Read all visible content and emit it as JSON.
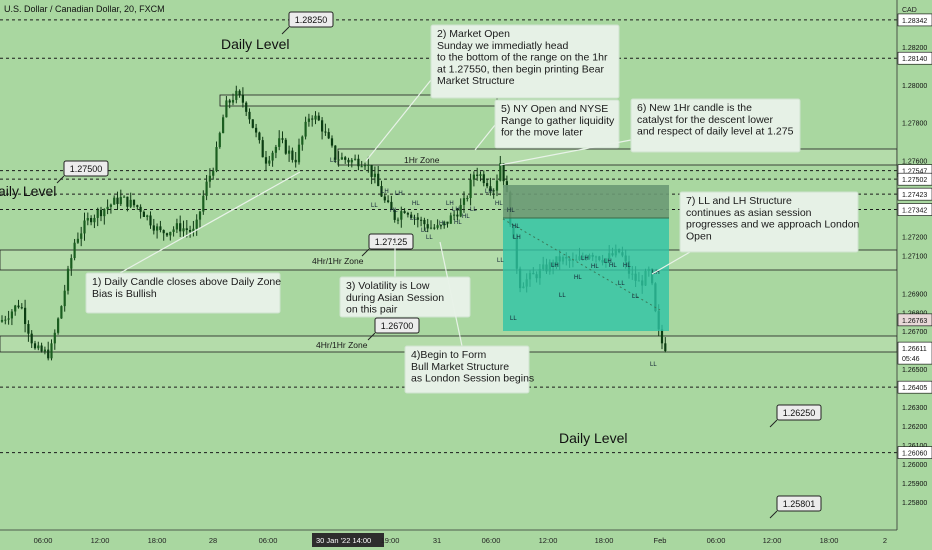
{
  "header": {
    "symbol": "U.S. Dollar / Canadian Dollar, 20, FXCM",
    "currency": "CAD"
  },
  "price_axis": {
    "ticks": [
      {
        "v": 1.28342,
        "label": "1.28342",
        "tag": true
      },
      {
        "v": 1.282,
        "label": "1.28200"
      },
      {
        "v": 1.2814,
        "label": "1.28140",
        "tag": true
      },
      {
        "v": 1.28,
        "label": "1.28000"
      },
      {
        "v": 1.278,
        "label": "1.27800"
      },
      {
        "v": 1.276,
        "label": "1.27600"
      },
      {
        "v": 1.27547,
        "label": "1.27547",
        "tag": true
      },
      {
        "v": 1.27502,
        "label": "1.27502",
        "tag": true
      },
      {
        "v": 1.27423,
        "label": "1.27423",
        "tag": true
      },
      {
        "v": 1.27342,
        "label": "1.27342",
        "tag": true
      },
      {
        "v": 1.272,
        "label": "1.27200"
      },
      {
        "v": 1.271,
        "label": "1.27100"
      },
      {
        "v": 1.269,
        "label": "1.26900"
      },
      {
        "v": 1.268,
        "label": "1.26800"
      },
      {
        "v": 1.2676,
        "label": "1.26763",
        "tag": true,
        "soft": true
      },
      {
        "v": 1.267,
        "label": "1.26700"
      },
      {
        "v": 1.26611,
        "label": "1.26611",
        "tag": true,
        "sub": "05:46"
      },
      {
        "v": 1.265,
        "label": "1.26500"
      },
      {
        "v": 1.26405,
        "label": "1.26405",
        "tag": true
      },
      {
        "v": 1.263,
        "label": "1.26300"
      },
      {
        "v": 1.262,
        "label": "1.26200"
      },
      {
        "v": 1.261,
        "label": "1.26100"
      },
      {
        "v": 1.2606,
        "label": "1.26060",
        "tag": true
      },
      {
        "v": 1.26,
        "label": "1.26000"
      },
      {
        "v": 1.259,
        "label": "1.25900"
      },
      {
        "v": 1.258,
        "label": "1.25800"
      }
    ]
  },
  "time_axis": {
    "labels": [
      "06:00",
      "12:00",
      "18:00",
      "28",
      "06:00",
      "30 Jan '22  14:00",
      "19:00",
      "31",
      "06:00",
      "12:00",
      "18:00",
      "Feb",
      "06:00",
      "12:00",
      "18:00",
      "2"
    ],
    "highlight_index": 5
  },
  "levels": [
    1.28342,
    1.2814,
    1.27547,
    1.27502,
    1.27423,
    1.27342,
    1.26405,
    1.2606
  ],
  "zones": [
    {
      "name": "4Hr/1Hr Zone",
      "label": "4Hr/1Hr Zone"
    },
    {
      "name": "4Hr/1Hr Zone",
      "label": "4Hr/1Hr Zone"
    },
    {
      "name": "1Hr Zone",
      "label": "1Hr Zone"
    }
  ],
  "price_tags": [
    "1.28250",
    "1.27500",
    "1.27125",
    "1.26700",
    "1.26250",
    "1.25801"
  ],
  "level_labels": [
    "Daily Level",
    "aily Level",
    "Daily Level"
  ],
  "annotations": [
    {
      "id": "daily-close",
      "lines": [
        "1) Daily Candle closes above Daily Zone",
        "Bias is Bullish"
      ]
    },
    {
      "id": "market-open",
      "lines": [
        "2) Market Open",
        "Sunday we immediatly head",
        "to the bottom of the range on the 1hr",
        "at 1.27550, then begin printing Bear",
        "Market Structure"
      ]
    },
    {
      "id": "volatility",
      "lines": [
        "3) Volatility is Low",
        "during Asian Session",
        "on this pair"
      ]
    },
    {
      "id": "bull-structure",
      "lines": [
        "4)Begin to Form",
        "Bull Market Structure",
        "as London Session begins"
      ]
    },
    {
      "id": "ny-open",
      "lines": [
        "5) NY Open and NYSE",
        "Range to gather liquidity",
        "for the move later"
      ]
    },
    {
      "id": "new-candle",
      "lines": [
        "6) New 1Hr candle is the",
        "catalyst for the descent lower",
        "and respect of daily level at 1.275"
      ]
    },
    {
      "id": "ll-lh",
      "lines": [
        "7) LL and LH Structure",
        "continues as asian session",
        "progresses and we approach London",
        "Open"
      ]
    }
  ],
  "structure_marks": [
    "LL",
    "LH",
    "HL",
    "LH",
    "LL",
    "HL",
    "LL",
    "LH",
    "HL",
    "HL",
    "LL",
    "HL",
    "LH",
    "LL",
    "LL",
    "HL",
    "LH",
    "HL",
    "HL",
    "LH",
    "LL",
    "LH",
    "LL",
    "HL",
    "LH",
    "HL",
    "LL",
    "LH",
    "HL",
    "LL",
    "HL",
    "LH",
    "LL",
    "LL"
  ],
  "colors": {
    "background": "#a9d7a0",
    "bull": "#1b5e20",
    "bear": "#0b3d12",
    "teal_box": "#2ec4a6",
    "zone": "#b4dcaa"
  }
}
